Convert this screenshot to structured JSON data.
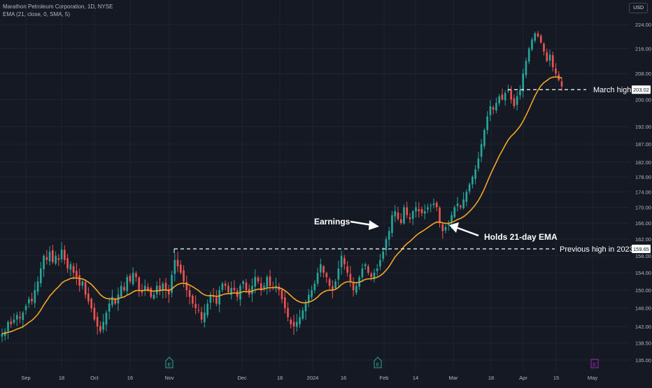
{
  "header": {
    "symbol_line": "Marathon Petroleum Corporation, 1D, NYSE",
    "indicator_line": "EMA (21, close, 0, SMA, 5)",
    "currency": "USD"
  },
  "colors": {
    "background": "#151924",
    "up": "#26a69a",
    "down": "#ef5350",
    "ema": "#f5a623",
    "grid": "#1f2430",
    "axis_text": "#b2b5be",
    "annotation": "#ffffff",
    "earnings_badge": "#26a69a",
    "upcoming_earnings_badge": "#9c27b0"
  },
  "chart_data": {
    "type": "candlestick",
    "title": "Marathon Petroleum Corporation, 1D, NYSE",
    "x_ticks": [
      "Sep",
      "18",
      "Oct",
      "16",
      "Nov",
      "Dec",
      "18",
      "2024",
      "16",
      "Feb",
      "14",
      "Mar",
      "18",
      "Apr",
      "15",
      "May"
    ],
    "y_ticks": [
      135.0,
      138.5,
      142.0,
      146.0,
      150.0,
      154.0,
      158.0,
      162.0,
      166.0,
      170.0,
      174.0,
      178.0,
      182.0,
      187.0,
      192.0,
      200.0,
      208.0,
      216.0,
      224.0
    ],
    "y_tick_labels": [
      "135.00",
      "138.50",
      "142.00",
      "146.00",
      "150.00",
      "154.00",
      "158.00",
      "162.00",
      "166.00",
      "170.00",
      "174.00",
      "178.00",
      "182.00",
      "187.00",
      "192.00",
      "200.00",
      "208.00",
      "216.00",
      "224.00"
    ],
    "ylim": [
      133.5,
      228
    ],
    "scale": "log",
    "grid": true,
    "price_labels": [
      {
        "value": 203.02,
        "text": "203.02"
      },
      {
        "value": 159.65,
        "text": "159.65"
      }
    ],
    "close_series_approx": [
      140.5,
      141,
      143,
      142.5,
      143.5,
      144.5,
      143.8,
      145,
      146.5,
      148,
      147.5,
      150,
      152,
      155,
      158,
      157,
      159,
      156.5,
      158,
      157,
      159.5,
      157,
      155,
      156,
      154,
      153,
      151,
      152,
      149,
      147.5,
      146,
      143.5,
      142,
      141,
      143,
      145,
      147,
      148.5,
      147,
      149,
      151,
      150,
      153,
      152,
      154,
      153,
      150,
      149.5,
      151,
      150,
      148.5,
      149,
      151,
      150,
      151.5,
      150,
      149,
      153.5,
      157,
      155.5,
      154,
      152,
      150,
      148.5,
      147,
      146,
      145.5,
      143.5,
      145,
      147,
      149,
      148.5,
      147,
      150,
      151.5,
      151,
      149.5,
      150.5,
      150,
      148.5,
      151,
      152,
      150,
      149,
      151,
      153,
      152,
      150,
      151,
      153,
      151,
      150.5,
      151,
      150,
      148,
      146,
      144,
      142.5,
      142,
      143,
      144,
      145.5,
      147,
      149,
      150,
      151.5,
      154,
      156,
      154,
      153,
      151,
      150,
      152,
      155,
      158,
      156,
      154,
      152,
      150,
      151,
      153,
      155,
      156,
      154,
      153,
      154,
      155,
      157,
      159,
      162,
      164,
      168,
      169,
      167,
      166,
      170,
      168,
      167,
      169,
      170,
      169,
      168.5,
      169,
      170,
      170.5,
      171,
      170,
      166,
      164,
      165,
      166,
      168,
      170,
      171,
      170,
      172,
      174,
      176,
      178,
      180,
      183,
      187,
      191,
      195,
      198,
      197,
      199,
      201,
      200,
      202,
      203,
      200,
      198,
      201,
      203,
      208,
      212,
      216,
      219,
      221,
      220,
      218,
      215,
      212,
      214,
      210,
      208,
      206,
      204
    ],
    "ema_21": "computed from close_series_approx",
    "horizontal_levels": [
      {
        "value": 203.02,
        "label": "March high"
      },
      {
        "value": 159.65,
        "label": "Previous high in 2023"
      }
    ],
    "annotations": [
      {
        "text": "Earnings"
      },
      {
        "text": "Holds 21-day EMA"
      }
    ],
    "event_markers": [
      {
        "type": "earnings",
        "text": "E"
      },
      {
        "type": "earnings",
        "text": "E"
      },
      {
        "type": "upcoming_earnings",
        "text": "E"
      }
    ]
  }
}
